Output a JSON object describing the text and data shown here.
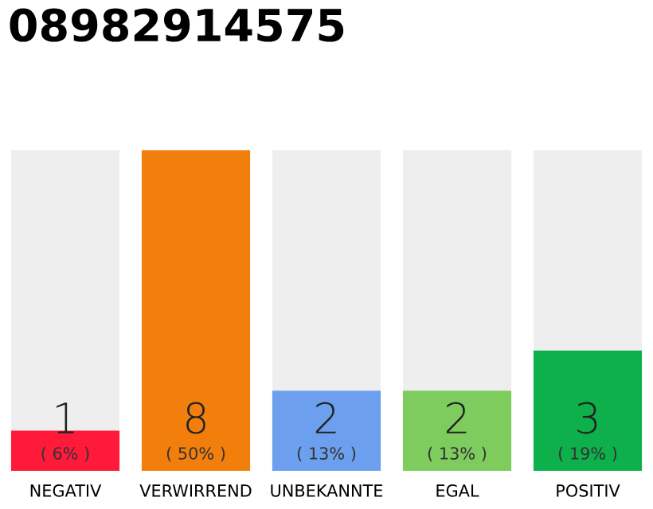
{
  "chart_data": {
    "type": "bar",
    "title": "08982914575",
    "categories": [
      "NEGATIV",
      "VERWIRREND",
      "UNBEKANNTE",
      "EGAL",
      "POSITIV"
    ],
    "values": [
      1,
      8,
      2,
      2,
      3
    ],
    "colors": [
      "#ff1a3a",
      "#f27e0c",
      "#6ca0ee",
      "#7ecb5e",
      "#0db04b"
    ],
    "data_labels": true,
    "annotations": [
      "( 6% )",
      "( 50% )",
      "( 13% )",
      "( 13% )",
      "( 19% )"
    ],
    "grid": false,
    "legend": false
  }
}
